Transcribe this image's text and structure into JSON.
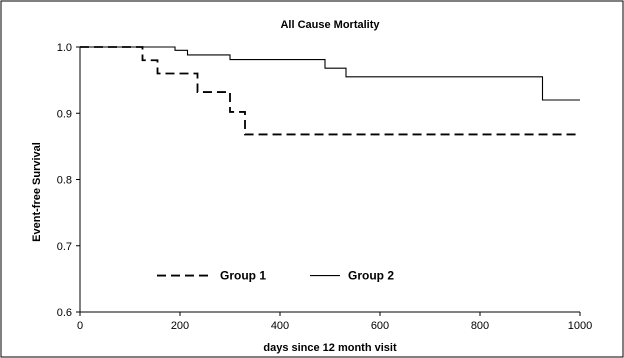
{
  "chart_data": {
    "type": "line",
    "title": "All Cause Mortality",
    "xlabel": "days since 12 month visit",
    "ylabel": "Event-free Survival",
    "xlim": [
      0,
      1000
    ],
    "ylim": [
      0.6,
      1.0
    ],
    "xticks": [
      0,
      200,
      400,
      600,
      800,
      1000
    ],
    "yticks": [
      0.6,
      0.7,
      0.8,
      0.9,
      1.0
    ],
    "xtick_labels": [
      "0",
      "200",
      "400",
      "600",
      "800",
      "1000"
    ],
    "ytick_labels": [
      "0.6",
      "0.7",
      "0.8",
      "0.9",
      "1.0"
    ],
    "grid": false,
    "legend_position": "inside-bottom-left",
    "step": true,
    "series": [
      {
        "name": "Group 1",
        "style": "dashed",
        "color": "#000000",
        "x": [
          0,
          125,
          155,
          235,
          300,
          330,
          1000
        ],
        "y": [
          1.0,
          0.98,
          0.96,
          0.932,
          0.902,
          0.868,
          0.868
        ]
      },
      {
        "name": "Group 2",
        "style": "solid",
        "color": "#000000",
        "x": [
          0,
          190,
          215,
          300,
          490,
          532,
          925,
          1000
        ],
        "y": [
          1.0,
          0.995,
          0.988,
          0.981,
          0.968,
          0.955,
          0.92,
          0.92
        ]
      }
    ]
  }
}
